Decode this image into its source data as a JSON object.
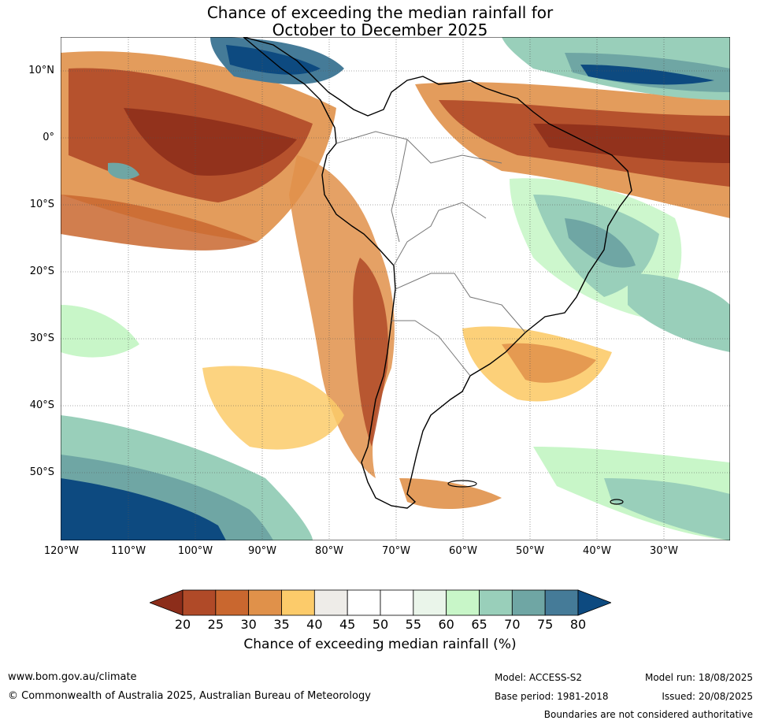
{
  "title": {
    "line1": "Chance of exceeding the median rainfall for",
    "line2": "October to December 2025"
  },
  "map": {
    "latitude_labels": [
      "10°N",
      "0°",
      "10°S",
      "20°S",
      "30°S",
      "40°S",
      "50°S"
    ],
    "longitude_labels": [
      "120°W",
      "110°W",
      "100°W",
      "90°W",
      "80°W",
      "70°W",
      "60°W",
      "50°W",
      "40°W",
      "30°W"
    ],
    "region": "South America and surrounding oceans",
    "lon_range": [
      -120,
      -20
    ],
    "lat_range": [
      -60,
      15
    ]
  },
  "colorbar": {
    "ticks": [
      "20",
      "25",
      "30",
      "35",
      "40",
      "45",
      "50",
      "55",
      "60",
      "65",
      "70",
      "75",
      "80"
    ],
    "colors": [
      "#8c2d1a",
      "#b04a28",
      "#c9672f",
      "#e0914a",
      "#fccb6a",
      "#eeece8",
      "#ffffff",
      "#ffffff",
      "#eaf5ea",
      "#c8f6c8",
      "#99cfba",
      "#6fa6a4",
      "#457b98",
      "#0d4a80"
    ],
    "label": "Chance of exceeding median rainfall (%)"
  },
  "footer": {
    "url": "www.bom.gov.au/climate",
    "copyright": "© Commonwealth of Australia 2025, Australian Bureau of Meteorology",
    "model": "Model: ACCESS-S2",
    "base_period": "Base period: 1981-2018",
    "model_run": "Model run: 18/08/2025",
    "issued": "Issued: 20/08/2025",
    "disclaimer": "Boundaries are not considered authoritative"
  }
}
